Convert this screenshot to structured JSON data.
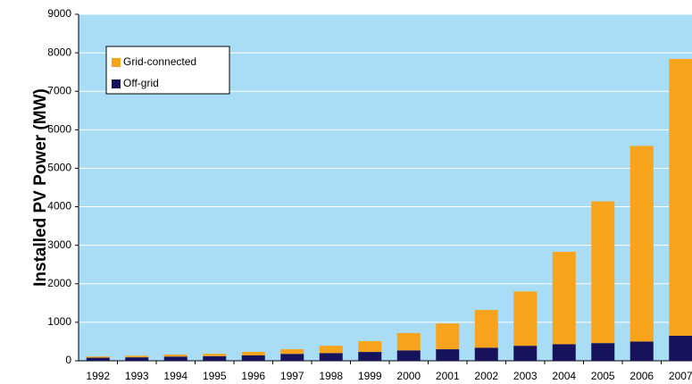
{
  "chart_data": {
    "type": "stacked_bar",
    "y_label": "Installed PV Power (MW)",
    "categories": [
      "1992",
      "1993",
      "1994",
      "1995",
      "1996",
      "1997",
      "1998",
      "1999",
      "2000",
      "2001",
      "2002",
      "2003",
      "2004",
      "2005",
      "2006",
      "2007"
    ],
    "series": [
      {
        "name": "Off-grid",
        "color": "#16135c",
        "values": [
          80,
          90,
          110,
          120,
          140,
          180,
          200,
          230,
          270,
          300,
          340,
          390,
          430,
          460,
          500,
          650
        ]
      },
      {
        "name": "Grid-connected",
        "color": "#f7a31c",
        "values": [
          30,
          40,
          50,
          60,
          90,
          120,
          190,
          280,
          450,
          670,
          980,
          1410,
          2400,
          3680,
          5080,
          7190
        ]
      }
    ],
    "legend_order": [
      1,
      0
    ],
    "ylim": [
      0,
      9000
    ],
    "yticks": [
      0,
      1000,
      2000,
      3000,
      4000,
      5000,
      6000,
      7000,
      8000,
      9000
    ],
    "grid": true
  }
}
